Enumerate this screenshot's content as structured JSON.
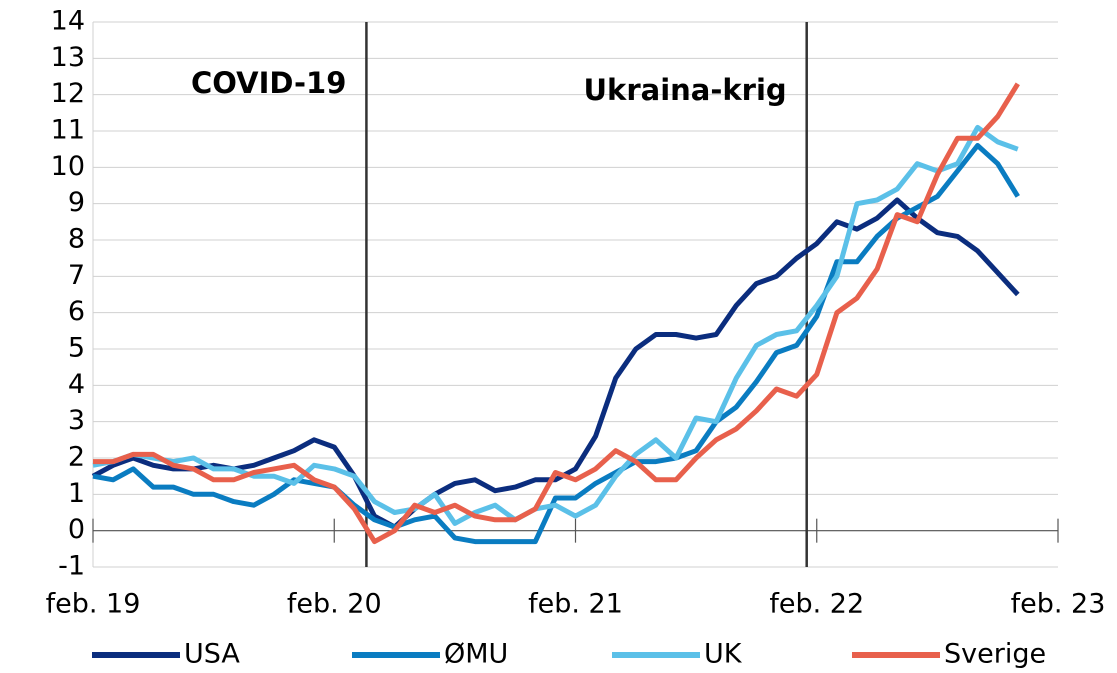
{
  "chart_data": {
    "type": "line",
    "categories": [
      "feb. 19",
      null,
      null,
      null,
      null,
      null,
      null,
      null,
      null,
      null,
      null,
      null,
      "feb. 20",
      null,
      null,
      null,
      null,
      null,
      null,
      null,
      null,
      null,
      null,
      null,
      "feb. 21",
      null,
      null,
      null,
      null,
      null,
      null,
      null,
      null,
      null,
      null,
      null,
      "feb. 22",
      null,
      null,
      null,
      null,
      null,
      null,
      null,
      null,
      null,
      null,
      null,
      "feb. 23"
    ],
    "series": [
      {
        "name": "USA",
        "color": "#0b2d7e",
        "values": [
          1.5,
          1.8,
          2.0,
          1.8,
          1.7,
          1.7,
          1.8,
          1.7,
          1.8,
          2.0,
          2.2,
          2.5,
          2.3,
          1.5,
          0.4,
          0.1,
          0.6,
          1.0,
          1.3,
          1.4,
          1.1,
          1.2,
          1.4,
          1.4,
          1.7,
          2.6,
          4.2,
          5.0,
          5.4,
          5.4,
          5.3,
          5.4,
          6.2,
          6.8,
          7.0,
          7.5,
          7.9,
          8.5,
          8.3,
          8.6,
          9.1,
          8.6,
          8.2,
          8.1,
          7.7,
          7.1,
          6.5,
          null,
          null
        ]
      },
      {
        "name": "ØMU",
        "color": "#0a7cc1",
        "values": [
          1.5,
          1.4,
          1.7,
          1.2,
          1.2,
          1.0,
          1.0,
          0.8,
          0.7,
          1.0,
          1.4,
          1.3,
          1.2,
          0.7,
          0.3,
          0.1,
          0.3,
          0.4,
          -0.2,
          -0.3,
          -0.3,
          -0.3,
          -0.3,
          0.9,
          0.9,
          1.3,
          1.6,
          1.9,
          1.9,
          2.0,
          2.2,
          3.0,
          3.4,
          4.1,
          4.9,
          5.1,
          5.9,
          7.4,
          7.4,
          8.1,
          8.6,
          8.9,
          9.2,
          9.9,
          10.6,
          10.1,
          9.2,
          null,
          null
        ]
      },
      {
        "name": "UK",
        "color": "#5bc0e8",
        "values": [
          1.8,
          1.9,
          2.1,
          2.0,
          1.9,
          2.0,
          1.7,
          1.7,
          1.5,
          1.5,
          1.3,
          1.8,
          1.7,
          1.5,
          0.8,
          0.5,
          0.6,
          1.0,
          0.2,
          0.5,
          0.7,
          0.3,
          0.6,
          0.7,
          0.4,
          0.7,
          1.5,
          2.1,
          2.5,
          2.0,
          3.1,
          3.0,
          4.2,
          5.1,
          5.4,
          5.5,
          6.2,
          7.0,
          9.0,
          9.1,
          9.4,
          10.1,
          9.9,
          10.1,
          11.1,
          10.7,
          10.5,
          null,
          null
        ]
      },
      {
        "name": "Sverige",
        "color": "#e8604c",
        "values": [
          1.9,
          1.9,
          2.1,
          2.1,
          1.8,
          1.7,
          1.4,
          1.4,
          1.6,
          1.7,
          1.8,
          1.4,
          1.2,
          0.6,
          -0.3,
          0.0,
          0.7,
          0.5,
          0.7,
          0.4,
          0.3,
          0.3,
          0.6,
          1.6,
          1.4,
          1.7,
          2.2,
          1.9,
          1.4,
          1.4,
          2.0,
          2.5,
          2.8,
          3.3,
          3.9,
          3.7,
          4.3,
          6.0,
          6.4,
          7.2,
          8.7,
          8.5,
          9.8,
          10.8,
          10.8,
          11.4,
          12.3,
          null,
          null
        ]
      }
    ],
    "ylim": [
      -1,
      14
    ],
    "yticks": [
      -1,
      0,
      1,
      2,
      3,
      4,
      5,
      6,
      7,
      8,
      9,
      10,
      11,
      12,
      13,
      14
    ],
    "grid": true,
    "legend": "bottom",
    "annotations": [
      {
        "text": "COVID-19",
        "x": 13.6
      },
      {
        "text": "Ukraina-krig",
        "x": 35.5
      }
    ]
  }
}
